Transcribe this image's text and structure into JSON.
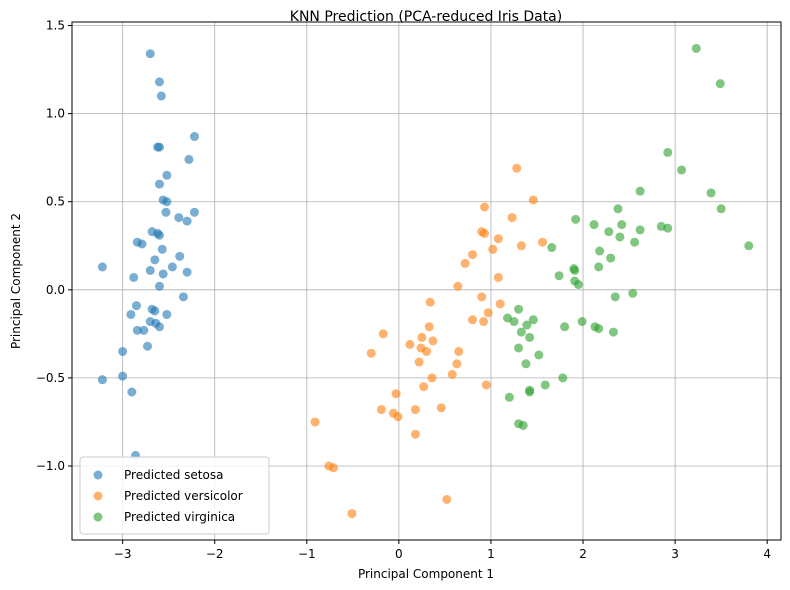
{
  "chart_data": {
    "type": "scatter",
    "title": "KNN Prediction (PCA-reduced Iris Data)",
    "xlabel": "Principal Component 1",
    "ylabel": "Principal Component 2",
    "xlim": [
      -3.55,
      4.15
    ],
    "ylim": [
      -1.42,
      1.52
    ],
    "xticks": [
      -3,
      -2,
      -1,
      0,
      1,
      2,
      3,
      4
    ],
    "xtick_labels": [
      "−3",
      "−2",
      "−1",
      "0",
      "1",
      "2",
      "3",
      "4"
    ],
    "yticks": [
      -1.0,
      -0.5,
      0.0,
      0.5,
      1.0,
      1.5
    ],
    "ytick_labels": [
      "−1.0",
      "−0.5",
      "0.0",
      "0.5",
      "1.0",
      "1.5"
    ],
    "grid": true,
    "legend_position": "bottom-left",
    "series": [
      {
        "name": "Predicted setosa",
        "color": "#1f77b4",
        "points": [
          [
            -2.7,
            1.34
          ],
          [
            -2.6,
            1.18
          ],
          [
            -2.58,
            1.1
          ],
          [
            -2.22,
            0.87
          ],
          [
            -2.62,
            0.81
          ],
          [
            -2.6,
            0.81
          ],
          [
            -2.28,
            0.74
          ],
          [
            -2.52,
            0.65
          ],
          [
            -2.6,
            0.6
          ],
          [
            -2.56,
            0.51
          ],
          [
            -2.52,
            0.5
          ],
          [
            -2.53,
            0.44
          ],
          [
            -2.22,
            0.44
          ],
          [
            -2.39,
            0.41
          ],
          [
            -2.3,
            0.39
          ],
          [
            -2.68,
            0.33
          ],
          [
            -2.62,
            0.32
          ],
          [
            -2.6,
            0.31
          ],
          [
            -2.84,
            0.27
          ],
          [
            -2.79,
            0.26
          ],
          [
            -2.57,
            0.23
          ],
          [
            -2.38,
            0.19
          ],
          [
            -2.65,
            0.17
          ],
          [
            -2.46,
            0.13
          ],
          [
            -3.22,
            0.13
          ],
          [
            -2.7,
            0.11
          ],
          [
            -2.3,
            0.1
          ],
          [
            -2.56,
            0.09
          ],
          [
            -2.88,
            0.07
          ],
          [
            -2.6,
            0.02
          ],
          [
            -2.34,
            -0.04
          ],
          [
            -2.85,
            -0.09
          ],
          [
            -2.68,
            -0.11
          ],
          [
            -2.65,
            -0.12
          ],
          [
            -2.91,
            -0.14
          ],
          [
            -2.52,
            -0.14
          ],
          [
            -2.7,
            -0.18
          ],
          [
            -2.64,
            -0.19
          ],
          [
            -2.6,
            -0.21
          ],
          [
            -2.84,
            -0.23
          ],
          [
            -2.77,
            -0.23
          ],
          [
            -2.73,
            -0.32
          ],
          [
            -3.0,
            -0.35
          ],
          [
            -3.0,
            -0.49
          ],
          [
            -3.22,
            -0.51
          ],
          [
            -2.9,
            -0.58
          ],
          [
            -2.86,
            -0.94
          ]
        ]
      },
      {
        "name": "Predicted versicolor",
        "color": "#ff7f0e",
        "points": [
          [
            1.28,
            0.69
          ],
          [
            1.46,
            0.51
          ],
          [
            0.93,
            0.47
          ],
          [
            1.23,
            0.41
          ],
          [
            0.9,
            0.33
          ],
          [
            0.93,
            0.32
          ],
          [
            1.08,
            0.29
          ],
          [
            1.56,
            0.27
          ],
          [
            1.33,
            0.25
          ],
          [
            1.02,
            0.23
          ],
          [
            0.8,
            0.2
          ],
          [
            0.72,
            0.15
          ],
          [
            1.08,
            0.07
          ],
          [
            0.64,
            0.02
          ],
          [
            0.9,
            -0.04
          ],
          [
            0.34,
            -0.07
          ],
          [
            1.1,
            -0.08
          ],
          [
            0.97,
            -0.13
          ],
          [
            0.8,
            -0.17
          ],
          [
            0.92,
            -0.18
          ],
          [
            0.33,
            -0.21
          ],
          [
            -0.17,
            -0.25
          ],
          [
            0.25,
            -0.27
          ],
          [
            0.37,
            -0.29
          ],
          [
            0.12,
            -0.31
          ],
          [
            0.24,
            -0.33
          ],
          [
            0.3,
            -0.35
          ],
          [
            0.65,
            -0.35
          ],
          [
            -0.3,
            -0.36
          ],
          [
            0.22,
            -0.41
          ],
          [
            0.63,
            -0.42
          ],
          [
            0.58,
            -0.48
          ],
          [
            0.36,
            -0.5
          ],
          [
            0.95,
            -0.54
          ],
          [
            0.27,
            -0.55
          ],
          [
            -0.03,
            -0.59
          ],
          [
            0.46,
            -0.67
          ],
          [
            0.18,
            -0.68
          ],
          [
            -0.19,
            -0.68
          ],
          [
            -0.06,
            -0.7
          ],
          [
            -0.01,
            -0.72
          ],
          [
            -0.91,
            -0.75
          ],
          [
            0.18,
            -0.82
          ],
          [
            -0.76,
            -1.0
          ],
          [
            -0.71,
            -1.01
          ],
          [
            0.52,
            -1.19
          ],
          [
            -0.51,
            -1.27
          ]
        ]
      },
      {
        "name": "Predicted virginica",
        "color": "#2ca02c",
        "points": [
          [
            3.23,
            1.37
          ],
          [
            3.49,
            1.17
          ],
          [
            2.92,
            0.78
          ],
          [
            3.07,
            0.68
          ],
          [
            2.62,
            0.56
          ],
          [
            3.39,
            0.55
          ],
          [
            3.5,
            0.46
          ],
          [
            2.38,
            0.46
          ],
          [
            1.92,
            0.4
          ],
          [
            2.42,
            0.37
          ],
          [
            2.12,
            0.37
          ],
          [
            2.85,
            0.36
          ],
          [
            2.92,
            0.35
          ],
          [
            2.28,
            0.33
          ],
          [
            2.62,
            0.34
          ],
          [
            2.4,
            0.3
          ],
          [
            2.56,
            0.27
          ],
          [
            3.8,
            0.25
          ],
          [
            1.66,
            0.24
          ],
          [
            2.18,
            0.22
          ],
          [
            2.3,
            0.18
          ],
          [
            2.17,
            0.13
          ],
          [
            1.9,
            0.12
          ],
          [
            1.91,
            0.11
          ],
          [
            1.74,
            0.08
          ],
          [
            1.91,
            0.05
          ],
          [
            1.95,
            0.03
          ],
          [
            2.54,
            -0.02
          ],
          [
            2.35,
            -0.04
          ],
          [
            1.3,
            -0.11
          ],
          [
            1.18,
            -0.16
          ],
          [
            1.25,
            -0.18
          ],
          [
            1.46,
            -0.17
          ],
          [
            1.99,
            -0.18
          ],
          [
            1.39,
            -0.2
          ],
          [
            1.8,
            -0.21
          ],
          [
            2.13,
            -0.21
          ],
          [
            2.17,
            -0.22
          ],
          [
            1.33,
            -0.24
          ],
          [
            2.33,
            -0.24
          ],
          [
            1.42,
            -0.27
          ],
          [
            1.3,
            -0.33
          ],
          [
            1.52,
            -0.37
          ],
          [
            1.38,
            -0.42
          ],
          [
            1.78,
            -0.5
          ],
          [
            1.59,
            -0.54
          ],
          [
            1.42,
            -0.57
          ],
          [
            1.42,
            -0.58
          ],
          [
            1.2,
            -0.61
          ],
          [
            1.3,
            -0.76
          ],
          [
            1.35,
            -0.77
          ]
        ]
      }
    ]
  }
}
